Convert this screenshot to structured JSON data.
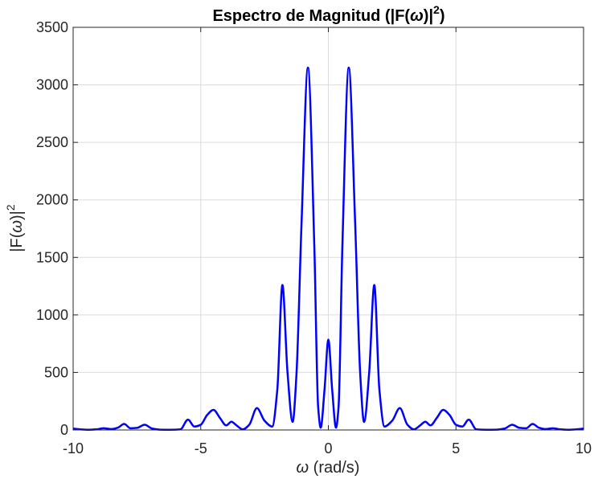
{
  "chart_data": {
    "type": "line",
    "title": {
      "prefix": "Espectro de Magnitud (|F(",
      "symbol": "ω",
      "suffix": ")|",
      "superscript": "2",
      "close": ")"
    },
    "xlabel": {
      "symbol": "ω",
      "text": " (rad/s)"
    },
    "ylabel": {
      "prefix": "|F(",
      "symbol": "ω",
      "suffix": ")|",
      "superscript": "2"
    },
    "xlim": [
      -10,
      10
    ],
    "ylim": [
      0,
      3500
    ],
    "xticks": [
      -10,
      -5,
      0,
      5,
      10
    ],
    "yticks": [
      0,
      500,
      1000,
      1500,
      2000,
      2500,
      3000,
      3500
    ],
    "xtick_labels": [
      "-10",
      "-5",
      "0",
      "5",
      "10"
    ],
    "ytick_labels": [
      "0",
      "500",
      "1000",
      "1500",
      "2000",
      "2500",
      "3000",
      "3500"
    ],
    "grid": true,
    "series": [
      {
        "color": "#0000ff",
        "x": [
          -10,
          -9.7,
          -9.4,
          -9.1,
          -8.8,
          -8.5,
          -8.25,
          -8.0,
          -7.75,
          -7.5,
          -7.2,
          -6.9,
          -6.6,
          -6.2,
          -5.8,
          -5.5,
          -5.25,
          -5.0,
          -4.75,
          -4.5,
          -4.25,
          -4.0,
          -3.8,
          -3.6,
          -3.35,
          -3.1,
          -2.8,
          -2.5,
          -2.2,
          -2.0,
          -1.8,
          -1.6,
          -1.4,
          -1.25,
          -1.05,
          -0.8,
          -0.55,
          -0.4,
          -0.3,
          -0.15,
          0,
          0.15,
          0.3,
          0.4,
          0.55,
          0.8,
          1.05,
          1.25,
          1.4,
          1.6,
          1.8,
          2.0,
          2.2,
          2.5,
          2.8,
          3.1,
          3.35,
          3.6,
          3.8,
          4.0,
          4.25,
          4.5,
          4.75,
          5.0,
          5.25,
          5.5,
          5.8,
          6.2,
          6.6,
          6.9,
          7.2,
          7.5,
          7.75,
          8.0,
          8.25,
          8.5,
          8.8,
          9.1,
          9.4,
          9.7,
          10
        ],
        "y": [
          12,
          5,
          2,
          5,
          15,
          8,
          20,
          52,
          15,
          18,
          45,
          12,
          3,
          2,
          5,
          90,
          30,
          45,
          130,
          175,
          105,
          40,
          72,
          40,
          5,
          45,
          190,
          80,
          30,
          350,
          1260,
          500,
          70,
          480,
          1800,
          3150,
          1600,
          200,
          20,
          350,
          785,
          350,
          20,
          200,
          1600,
          3150,
          1800,
          480,
          70,
          500,
          1260,
          350,
          30,
          80,
          190,
          45,
          5,
          40,
          72,
          40,
          105,
          175,
          130,
          45,
          30,
          90,
          5,
          2,
          3,
          12,
          45,
          18,
          15,
          52,
          20,
          8,
          15,
          5,
          2,
          5,
          12
        ]
      }
    ]
  }
}
